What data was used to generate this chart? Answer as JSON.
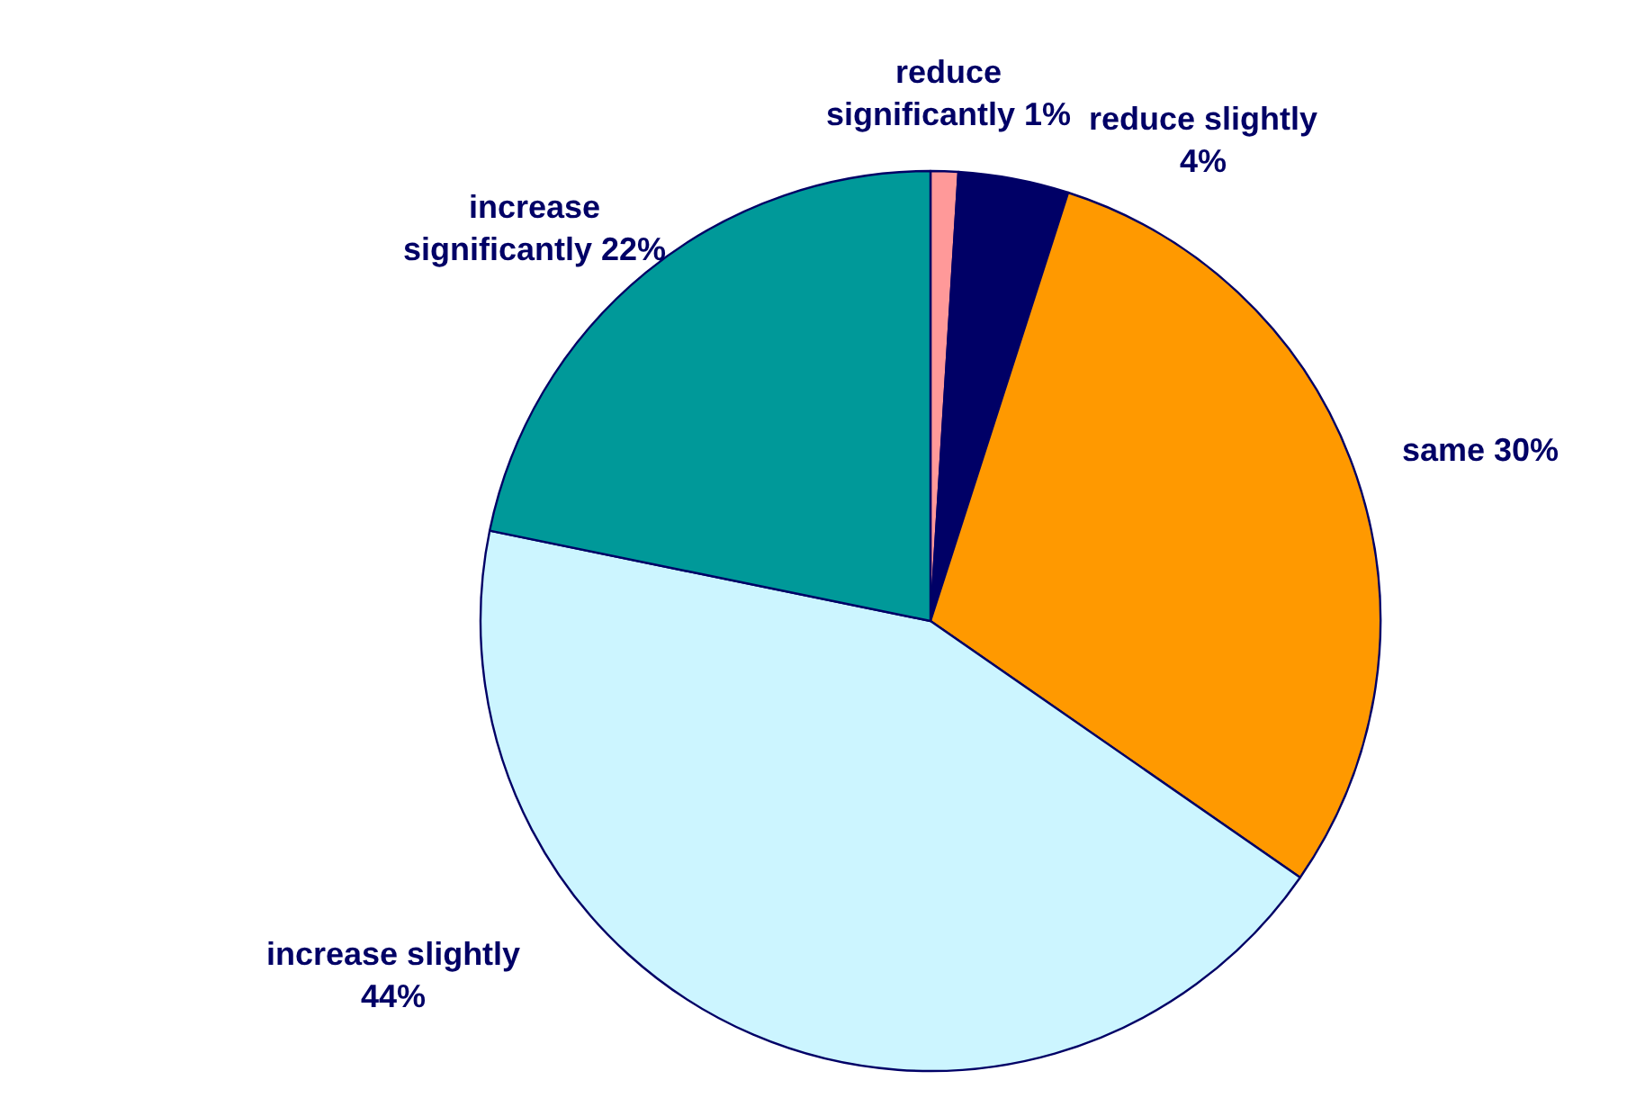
{
  "chart_data": {
    "type": "pie",
    "categories": [
      "reduce significantly",
      "reduce slightly",
      "same",
      "increase slightly",
      "increase significantly"
    ],
    "values": [
      1,
      4,
      30,
      44,
      22
    ],
    "value_labels": [
      "1%",
      "4%",
      "30%",
      "44%",
      "22%"
    ],
    "colors": [
      "#ff9999",
      "#000066",
      "#ff9900",
      "#ccf5ff",
      "#009999"
    ],
    "legend": false
  }
}
